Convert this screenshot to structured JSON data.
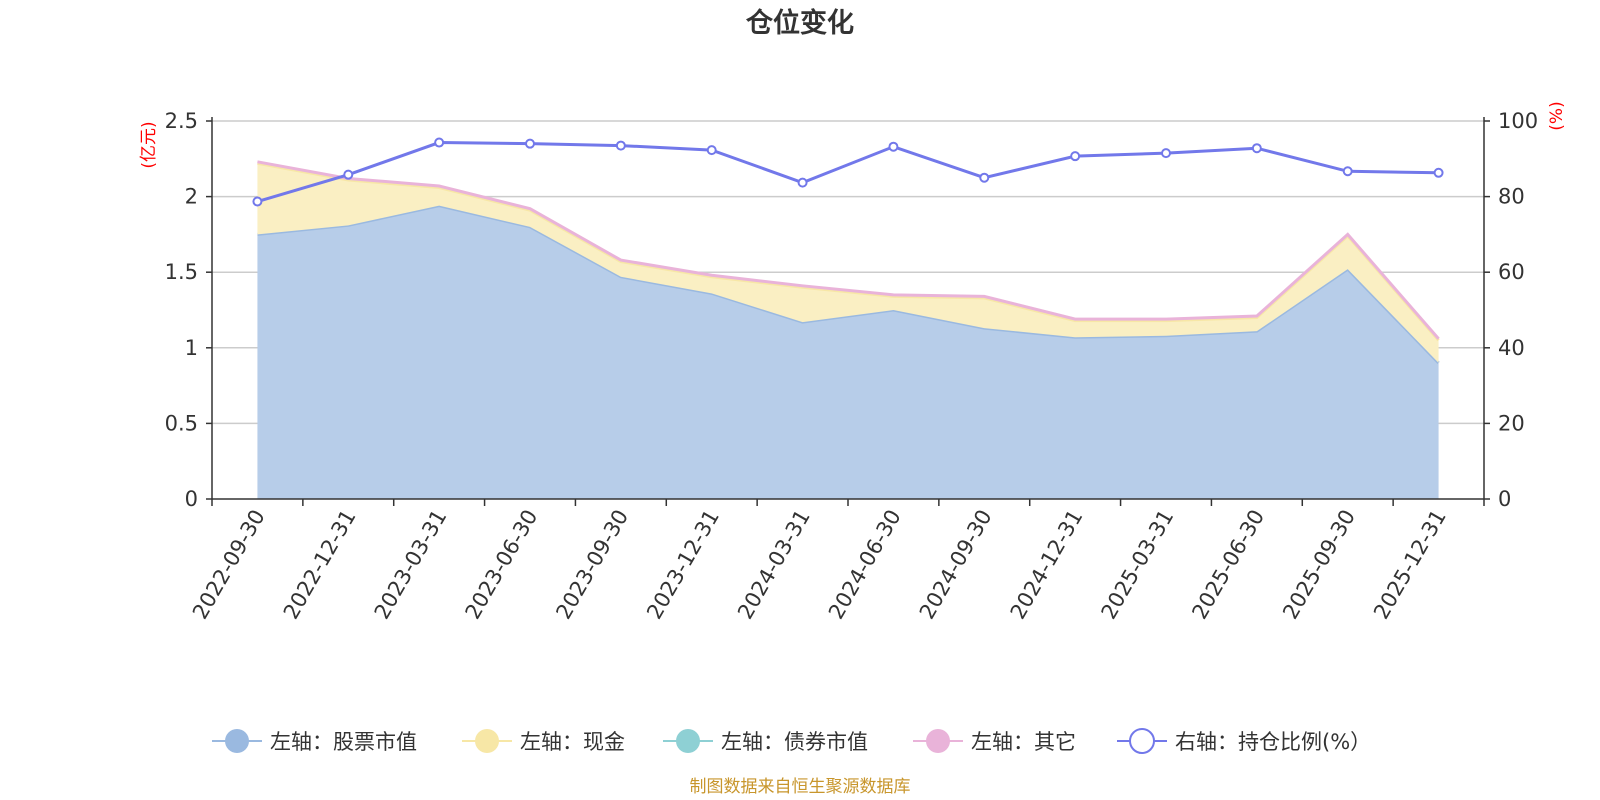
{
  "chart_data": {
    "type": "area",
    "title": "仓位变化",
    "categories": [
      "2022-09-30",
      "2022-12-31",
      "2023-03-31",
      "2023-06-30",
      "2023-09-30",
      "2023-12-31",
      "2024-03-31",
      "2024-06-30",
      "2024-09-30",
      "2024-12-31",
      "2025-03-31",
      "2025-06-30",
      "2025-09-30",
      "2025-12-31"
    ],
    "left_axis": {
      "unit": "(亿元)",
      "ylim": [
        0,
        2.5
      ],
      "ticks": [
        "0",
        "0.5",
        "1",
        "1.5",
        "2",
        "2.5"
      ]
    },
    "right_axis": {
      "unit": "(%)",
      "ylim": [
        0,
        100
      ],
      "ticks": [
        "0",
        "20",
        "40",
        "60",
        "80",
        "100"
      ]
    },
    "series": [
      {
        "name": "左轴：股票市值",
        "axis": "left",
        "color": "#9ab9e0",
        "fill": "#b7cde9",
        "values": [
          1.75,
          1.81,
          1.94,
          1.8,
          1.47,
          1.36,
          1.17,
          1.25,
          1.13,
          1.07,
          1.08,
          1.11,
          1.52,
          0.9
        ]
      },
      {
        "name": "左轴：现金",
        "axis": "left",
        "color": "#f7e7a6",
        "fill": "#faefc3",
        "values": [
          0.47,
          0.3,
          0.12,
          0.11,
          0.1,
          0.11,
          0.23,
          0.09,
          0.2,
          0.11,
          0.1,
          0.09,
          0.22,
          0.15
        ]
      },
      {
        "name": "左轴：债券市值",
        "axis": "left",
        "color": "#8ed0d4",
        "fill": "#8ed0d4",
        "values": [
          0,
          0,
          0,
          0,
          0,
          0,
          0,
          0,
          0,
          0,
          0,
          0,
          0,
          0
        ]
      },
      {
        "name": "左轴：其它",
        "axis": "left",
        "color": "#e9b3d9",
        "fill": "#e9b3d9",
        "values": [
          0.01,
          0.01,
          0.01,
          0.01,
          0.01,
          0.01,
          0.01,
          0.01,
          0.01,
          0.01,
          0.01,
          0.01,
          0.01,
          0.01
        ]
      },
      {
        "name": "右轴：持仓比例(%）",
        "axis": "right",
        "color": "#7278ea",
        "values": [
          78.7,
          85.8,
          94.3,
          94.0,
          93.5,
          92.3,
          83.7,
          93.2,
          85.0,
          90.7,
          91.5,
          92.8,
          86.7,
          86.3
        ]
      }
    ],
    "legend": "bottom-center",
    "grid": true
  },
  "source_text": "制图数据来自恒生聚源数据库"
}
